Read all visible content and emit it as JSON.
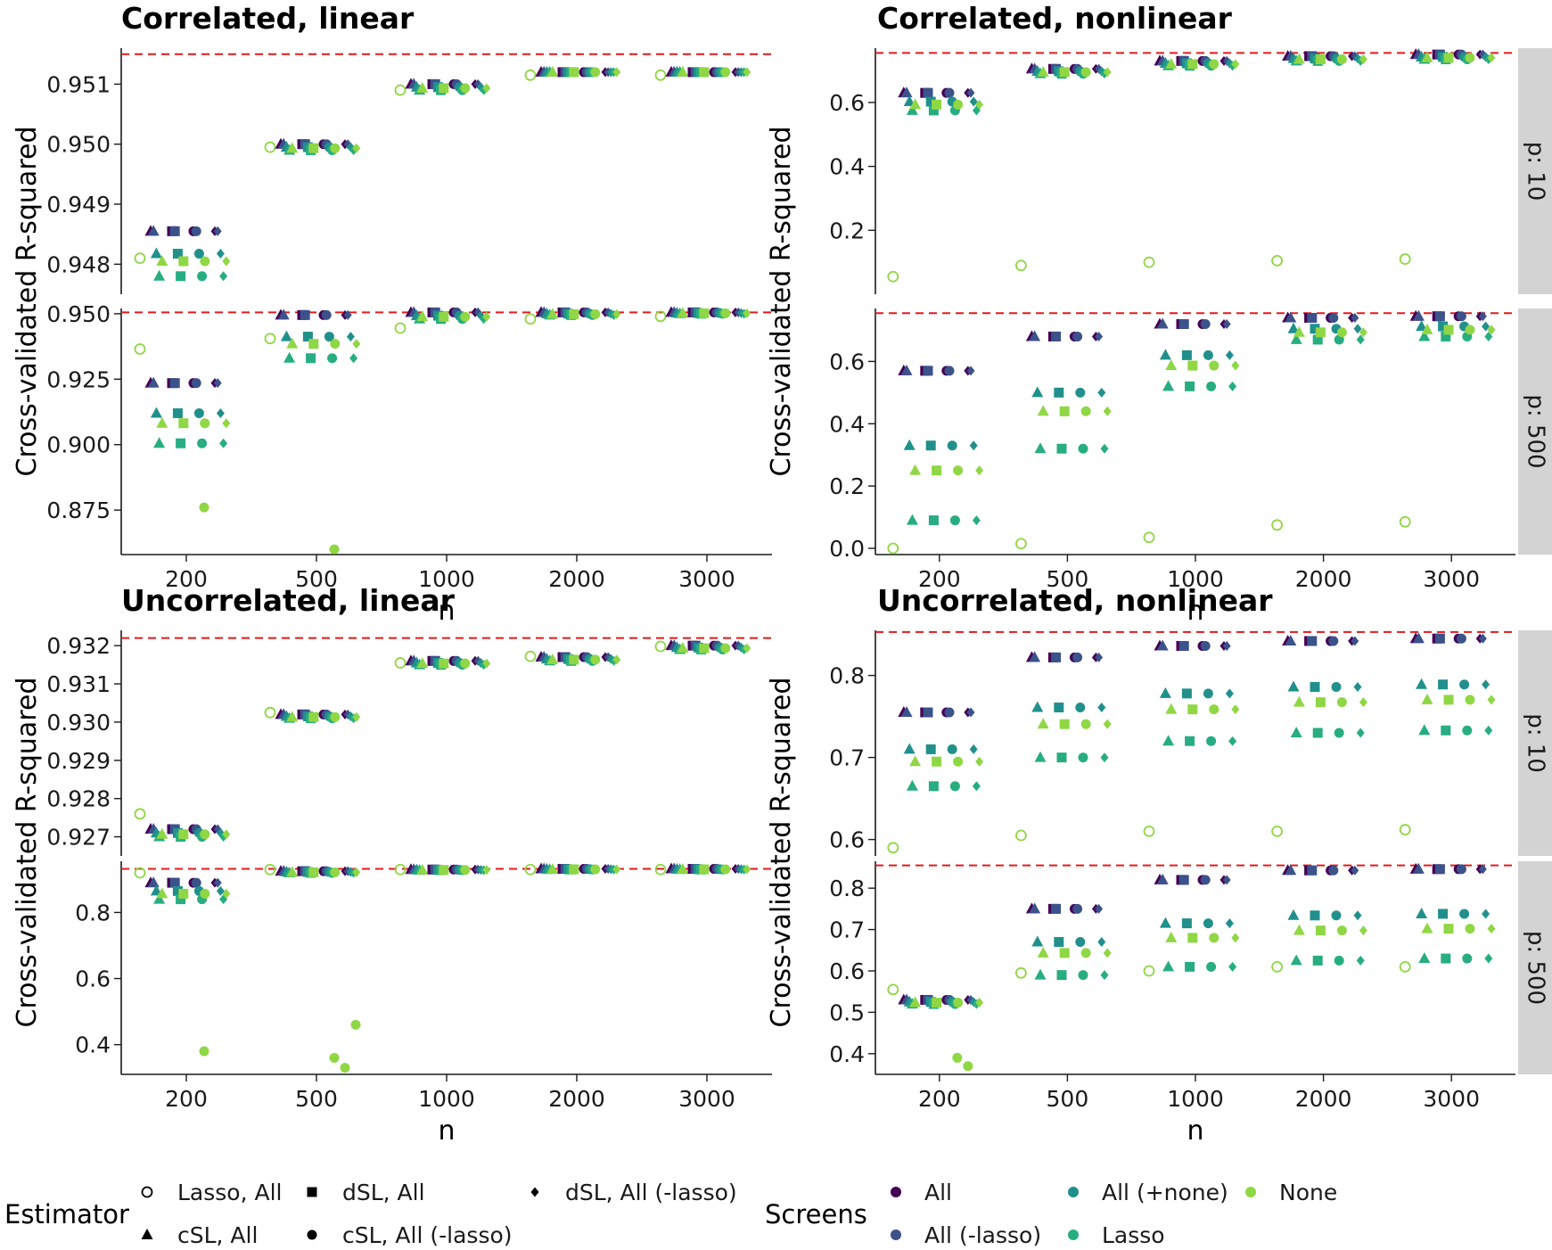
{
  "colors": {
    "All": "#440154",
    "All (-lasso)": "#3b528b",
    "All (+none)": "#21908c",
    "Lasso": "#27ad81",
    "None": "#8fd744",
    "reference_line": "#e31a1c",
    "strip_bg": "#d3d3d3"
  },
  "legend": {
    "estimator_title": "Estimator",
    "estimator_items": [
      {
        "label": "Lasso, All",
        "shape": "open-circle"
      },
      {
        "label": "dSL, All",
        "shape": "square"
      },
      {
        "label": "dSL, All (-lasso)",
        "shape": "diamond"
      },
      {
        "label": "cSL, All",
        "shape": "triangle"
      },
      {
        "label": "cSL, All (-lasso)",
        "shape": "circle"
      }
    ],
    "screens_title": "Screens",
    "screens_items": [
      {
        "label": "All",
        "color": "#440154"
      },
      {
        "label": "All (+none)",
        "color": "#21908c"
      },
      {
        "label": "None",
        "color": "#8fd744"
      },
      {
        "label": "All (-lasso)",
        "color": "#3b528b"
      },
      {
        "label": "Lasso",
        "color": "#27ad81"
      }
    ]
  },
  "chart_data": {
    "type": "scatter",
    "categories": [
      "200",
      "500",
      "1000",
      "2000",
      "3000"
    ],
    "xlabel": "n",
    "ylabel": "Cross-validated R-squared",
    "facet_rows": [
      "p: 10",
      "p: 500"
    ],
    "panels": [
      {
        "title": "Correlated, linear",
        "facets": [
          {
            "strip": "",
            "ylim": [
              0.9475,
              0.9516
            ],
            "yticks": [
              "0.948",
              "0.949",
              "0.950",
              "0.951"
            ],
            "ytick_values": [
              0.948,
              0.949,
              0.95,
              0.951
            ],
            "ref": 0.9515,
            "lasso": [
              0.9481,
              0.94995,
              0.9509,
              0.95115,
              0.95115
            ],
            "mid": [
              0.94855,
              0.95,
              0.951,
              0.9512,
              0.9512
            ],
            "low": [
              0.9478,
              0.9499,
              0.9509,
              0.9512,
              0.9512
            ],
            "out": [
              [],
              [],
              [],
              [],
              []
            ]
          },
          {
            "strip": "",
            "ylim": [
              0.858,
              0.952
            ],
            "yticks": [
              "0.875",
              "0.900",
              "0.925",
              "0.950"
            ],
            "ytick_values": [
              0.875,
              0.9,
              0.925,
              0.95
            ],
            "ref": 0.9505,
            "lasso": [
              0.9365,
              0.9405,
              0.9445,
              0.948,
              0.949
            ],
            "mid": [
              0.9235,
              0.9495,
              0.9505,
              0.9505,
              0.9505
            ],
            "low": [
              0.9005,
              0.933,
              0.948,
              0.9495,
              0.95
            ],
            "out": [
              [
                0.876
              ],
              [
                0.86
              ],
              [],
              [],
              []
            ]
          }
        ]
      },
      {
        "title": "Correlated, nonlinear",
        "facets": [
          {
            "strip": "p: 10",
            "ylim": [
              0.0,
              0.77
            ],
            "yticks": [
              "0.2",
              "0.4",
              "0.6"
            ],
            "ytick_values": [
              0.2,
              0.4,
              0.6
            ],
            "ref": 0.755,
            "lasso": [
              0.055,
              0.09,
              0.1,
              0.105,
              0.11
            ],
            "mid": [
              0.63,
              0.705,
              0.73,
              0.745,
              0.75
            ],
            "low": [
              0.575,
              0.69,
              0.715,
              0.73,
              0.735
            ],
            "out": [
              [],
              [],
              [],
              [],
              []
            ]
          },
          {
            "strip": "p: 500",
            "ylim": [
              -0.02,
              0.77
            ],
            "yticks": [
              "0.0",
              "0.2",
              "0.4",
              "0.6"
            ],
            "ytick_values": [
              0.0,
              0.2,
              0.4,
              0.6
            ],
            "ref": 0.755,
            "lasso": [
              0.0,
              0.015,
              0.035,
              0.075,
              0.085
            ],
            "mid": [
              0.57,
              0.68,
              0.72,
              0.74,
              0.745
            ],
            "low": [
              0.09,
              0.32,
              0.52,
              0.67,
              0.68
            ],
            "out": [
              [],
              [],
              [],
              [],
              []
            ]
          }
        ]
      },
      {
        "title": "Uncorrelated, linear",
        "facets": [
          {
            "strip": "",
            "ylim": [
              0.9265,
              0.9324
            ],
            "yticks": [
              "0.927",
              "0.928",
              "0.929",
              "0.930",
              "0.931",
              "0.932"
            ],
            "ytick_values": [
              0.927,
              0.928,
              0.929,
              0.93,
              0.931,
              0.932
            ],
            "ref": 0.9322,
            "lasso": [
              0.9276,
              0.93025,
              0.93155,
              0.93172,
              0.93198
            ],
            "mid": [
              0.9272,
              0.9302,
              0.9316,
              0.9317,
              0.932
            ],
            "low": [
              0.927,
              0.9301,
              0.9315,
              0.9316,
              0.9319
            ],
            "out": [
              [],
              [],
              [],
              [],
              []
            ]
          },
          {
            "strip": "",
            "ylim": [
              0.31,
              0.955
            ],
            "yticks": [
              "0.4",
              "0.6",
              "0.8"
            ],
            "ytick_values": [
              0.4,
              0.6,
              0.8
            ],
            "ref": 0.932,
            "lasso": [
              0.92,
              0.93,
              0.93,
              0.93,
              0.93
            ],
            "mid": [
              0.89,
              0.925,
              0.93,
              0.932,
              0.932
            ],
            "low": [
              0.84,
              0.92,
              0.928,
              0.93,
              0.93
            ],
            "out": [
              [
                0.38
              ],
              [
                0.36,
                0.33,
                0.46
              ],
              [],
              [],
              []
            ]
          }
        ]
      },
      {
        "title": "Uncorrelated, nonlinear",
        "facets": [
          {
            "strip": "p: 10",
            "ylim": [
              0.58,
              0.855
            ],
            "yticks": [
              "0.6",
              "0.7",
              "0.8"
            ],
            "ytick_values": [
              0.6,
              0.7,
              0.8
            ],
            "ref": 0.853,
            "lasso": [
              0.59,
              0.605,
              0.61,
              0.61,
              0.612
            ],
            "mid": [
              0.755,
              0.822,
              0.836,
              0.842,
              0.845
            ],
            "low": [
              0.665,
              0.7,
              0.72,
              0.73,
              0.733
            ],
            "out": [
              [],
              [],
              [],
              [],
              []
            ]
          },
          {
            "strip": "p: 500",
            "ylim": [
              0.35,
              0.865
            ],
            "yticks": [
              "0.4",
              "0.5",
              "0.6",
              "0.7",
              "0.8"
            ],
            "ytick_values": [
              0.4,
              0.5,
              0.6,
              0.7,
              0.8
            ],
            "ref": 0.855,
            "lasso": [
              0.555,
              0.595,
              0.6,
              0.61,
              0.61
            ],
            "mid": [
              0.53,
              0.75,
              0.82,
              0.843,
              0.846
            ],
            "low": [
              0.52,
              0.59,
              0.61,
              0.625,
              0.63
            ],
            "out": [
              [
                0.39,
                0.37
              ],
              [],
              [],
              [],
              []
            ]
          }
        ]
      }
    ]
  }
}
